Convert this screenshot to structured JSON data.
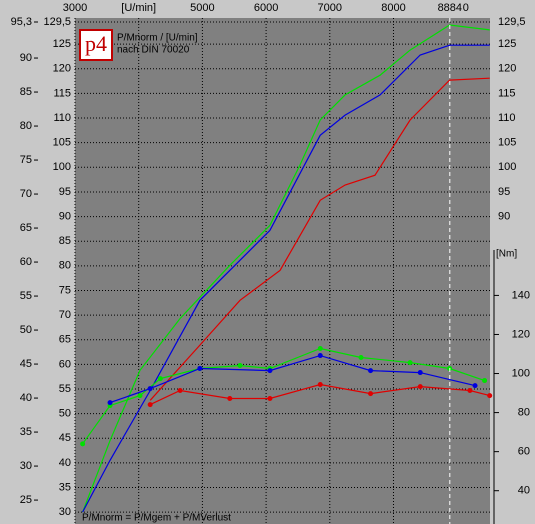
{
  "chart_data": {
    "type": "line",
    "title": "P/Mnorm / [U/min]",
    "subtitle": "nach DIN 70020",
    "footer": "P/Mnorm = P/Mgem + P/MVerlust",
    "logo": "p4",
    "xlim": [
      3000,
      9515
    ],
    "xticks": [
      3000,
      {
        "value": 4000,
        "label": "[U/min]"
      },
      5000,
      6000,
      7000,
      8000
    ],
    "cursor": 8884,
    "cursor_readout": "0",
    "ylim": [
      28.4,
      129.5
    ],
    "yticks": [
      30,
      35,
      40,
      45,
      50,
      55,
      60,
      65,
      70,
      75,
      80,
      85,
      90,
      95,
      100,
      105,
      110,
      115,
      120,
      125,
      {
        "value": 129.5,
        "label": "129,5"
      }
    ],
    "y3lim": [
      22.07,
      95.3
    ],
    "y3ticks": [
      25,
      30,
      35,
      40,
      45,
      50,
      55,
      60,
      65,
      70,
      75,
      80,
      85,
      90,
      {
        "value": 95.3,
        "label": "95,3"
      }
    ],
    "y2label": "[Nm]",
    "y2lim": [
      25,
      280
    ],
    "y2ticks": [
      40,
      60,
      80,
      100,
      120,
      140
    ],
    "grid": true,
    "series": [
      {
        "color": "#00e000",
        "x": [
          3120,
          3550,
          4020,
          4650,
          5430,
          6060,
          6530,
          6850,
          7240,
          7790,
          8260,
          8880,
          9510
        ],
        "values": [
          30,
          44.5,
          58.8,
          69.3,
          80.1,
          88.2,
          100.4,
          109.6,
          114.7,
          118.7,
          123.8,
          128.9,
          127.9
        ]
      },
      {
        "color": "#0000e0",
        "x": [
          3120,
          3550,
          4180,
          4960,
          6060,
          6850,
          7240,
          7790,
          8420,
          8880,
          9510
        ],
        "values": [
          30,
          40.5,
          54.7,
          73,
          87.2,
          106.5,
          110.6,
          114.7,
          122.8,
          124.8,
          124.8
        ]
      },
      {
        "color": "#e00000",
        "x": [
          4180,
          4960,
          5590,
          6220,
          6850,
          7240,
          7710,
          8260,
          8880,
          9510
        ],
        "values": [
          52.7,
          63.9,
          73,
          79.1,
          93.3,
          96.4,
          98.4,
          109.6,
          117.7,
          118.1
        ]
      },
      {
        "color": "#00e000",
        "axis": "y2",
        "markers": true,
        "x": [
          3120,
          3550,
          4020,
          4340,
          4960,
          5590,
          6060,
          6850,
          7490,
          8260,
          8880,
          9430
        ],
        "values": [
          64,
          83.6,
          88.7,
          97.4,
          102.6,
          104.1,
          102.6,
          112.8,
          108.2,
          105.6,
          102.6,
          96.4
        ]
      },
      {
        "color": "#0000e0",
        "axis": "y2",
        "markers": true,
        "x": [
          3550,
          4180,
          4960,
          6060,
          6850,
          7640,
          8420,
          9280
        ],
        "values": [
          85.1,
          92.3,
          102.6,
          101.5,
          109.2,
          101.5,
          100.5,
          93.8
        ]
      },
      {
        "color": "#e00000",
        "axis": "y2",
        "markers": true,
        "x": [
          4180,
          4650,
          5430,
          6060,
          6850,
          7640,
          8420,
          9200,
          9510
        ],
        "values": [
          84.1,
          91.3,
          87.2,
          87.2,
          94.4,
          89.7,
          93.3,
          91.3,
          88.7
        ]
      }
    ]
  }
}
